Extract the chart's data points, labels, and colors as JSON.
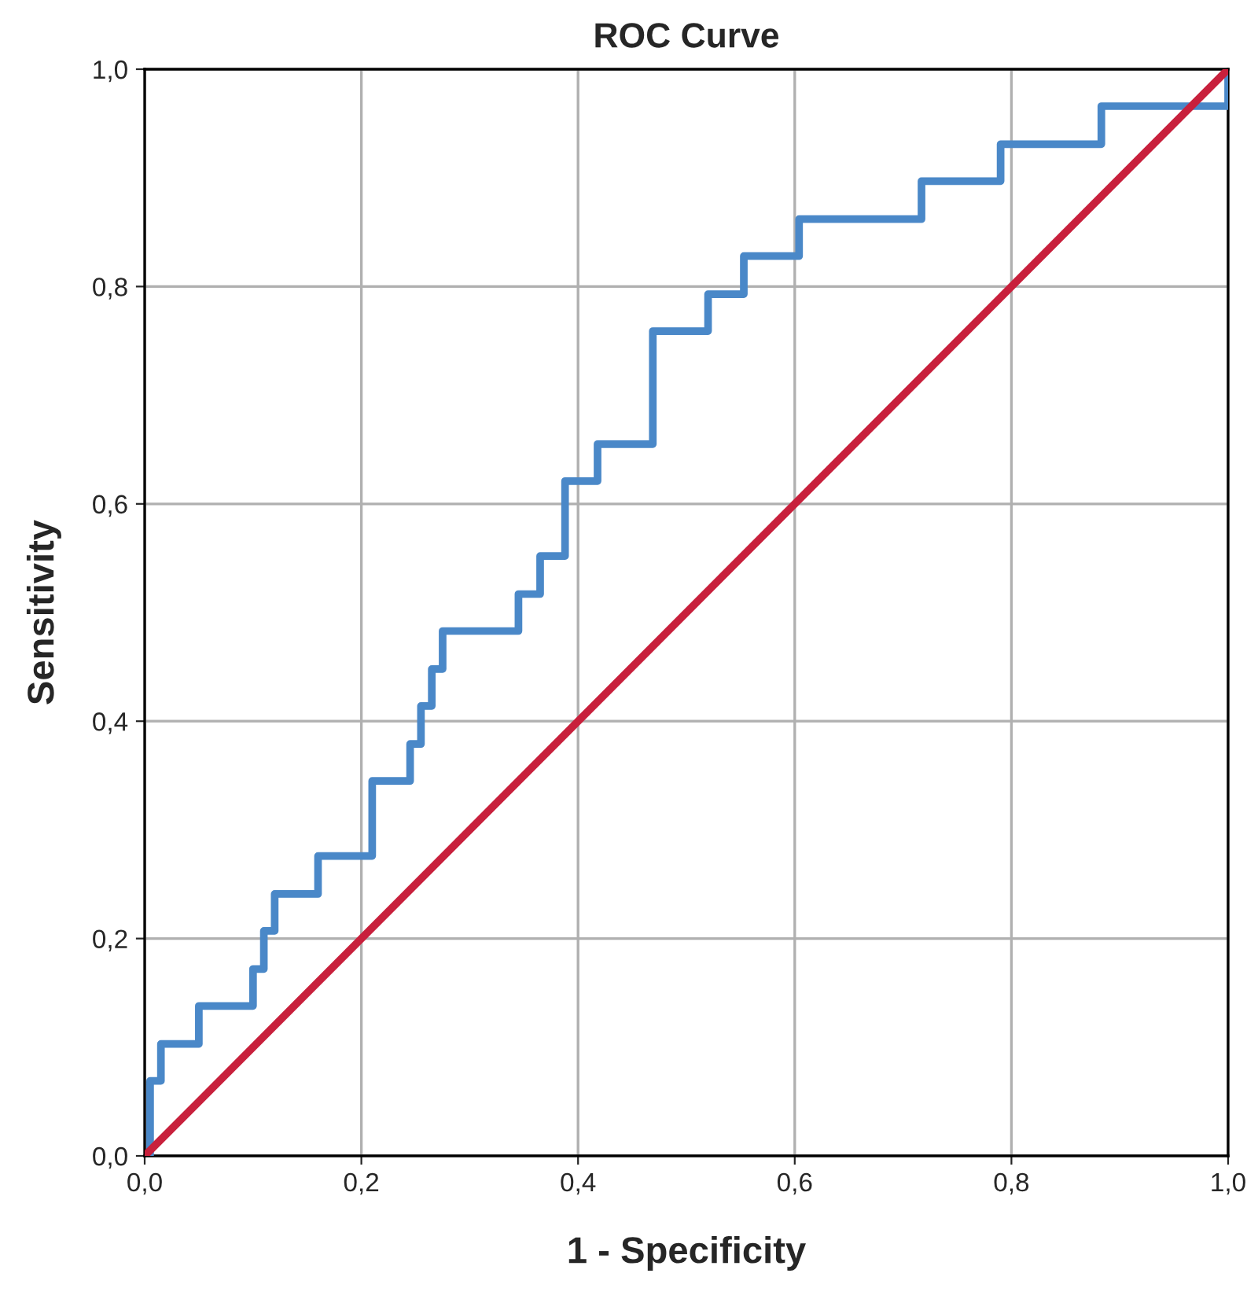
{
  "chart_data": {
    "type": "step",
    "title": "ROC Curve",
    "xlabel": "1 - Specificity",
    "ylabel": "Sensitivity",
    "series": [
      {
        "color": "#4a88c8",
        "x": [
          0,
          0.005,
          0.015,
          0.05,
          0.1,
          0.11,
          0.12,
          0.16,
          0.21,
          0.245,
          0.255,
          0.265,
          0.275,
          0.345,
          0.365,
          0.388,
          0.418,
          0.469,
          0.52,
          0.553,
          0.604,
          0.717,
          0.79,
          0.883,
          1.0
        ],
        "values": [
          0,
          0.069,
          0.103,
          0.138,
          0.172,
          0.207,
          0.241,
          0.276,
          0.345,
          0.379,
          0.414,
          0.448,
          0.483,
          0.517,
          0.552,
          0.621,
          0.655,
          0.759,
          0.793,
          0.828,
          0.862,
          0.897,
          0.931,
          0.966,
          1.0
        ]
      },
      {
        "type": "line",
        "color": "#c8203c",
        "x": [
          0,
          1
        ],
        "values": [
          0,
          1
        ]
      }
    ],
    "xlim": [
      0,
      1
    ],
    "ylim": [
      0,
      1
    ],
    "xticks": [
      {
        "value": 0,
        "label": "0,0"
      },
      {
        "value": 0.2,
        "label": "0,2"
      },
      {
        "value": 0.4,
        "label": "0,4"
      },
      {
        "value": 0.6,
        "label": "0,6"
      },
      {
        "value": 0.8,
        "label": "0,8"
      },
      {
        "value": 1,
        "label": "1,0"
      }
    ],
    "yticks": [
      {
        "value": 0,
        "label": "0,0"
      },
      {
        "value": 0.2,
        "label": "0,2"
      },
      {
        "value": 0.4,
        "label": "0,4"
      },
      {
        "value": 0.6,
        "label": "0,6"
      },
      {
        "value": 0.8,
        "label": "0,8"
      },
      {
        "value": 1,
        "label": "1,0"
      }
    ],
    "grid": true,
    "line_style": "solid"
  }
}
